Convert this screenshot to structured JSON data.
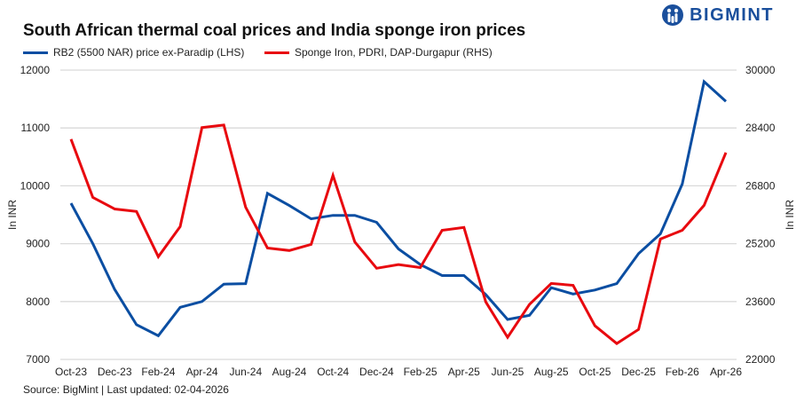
{
  "chart_data": {
    "type": "line",
    "title": "South African thermal coal prices and India sponge iron prices",
    "x": [
      "Oct-23",
      "Nov-23",
      "Dec-23",
      "Jan-24",
      "Feb-24",
      "Mar-24",
      "Apr-24",
      "May-24",
      "Jun-24",
      "Jul-24",
      "Aug-24",
      "Sep-24",
      "Oct-24",
      "Nov-24",
      "Dec-24",
      "Jan-25",
      "Feb-25",
      "Mar-25",
      "Apr-25",
      "May-25",
      "Jun-25",
      "Jul-25",
      "Aug-25",
      "Sep-25",
      "Oct-25",
      "Nov-25",
      "Dec-25",
      "Jan-26",
      "Feb-26",
      "Mar-26",
      "Apr-26"
    ],
    "xtick_labels": [
      "Oct-23",
      "Dec-23",
      "Feb-24",
      "Apr-24",
      "Jun-24",
      "Aug-24",
      "Oct-24",
      "Dec-24",
      "Feb-25",
      "Apr-25",
      "Jun-25",
      "Aug-25",
      "Oct-25",
      "Dec-25",
      "Feb-26",
      "Apr-26"
    ],
    "ylabel_left": "In INR",
    "ylabel_right": "In INR",
    "ylim_left": [
      7000,
      12000
    ],
    "ylim_right": [
      22000,
      30000
    ],
    "yticks_left": [
      "7000",
      "8000",
      "9000",
      "10000",
      "11000",
      "12000"
    ],
    "yticks_right": [
      "22000",
      "23600",
      "25200",
      "26800",
      "28400",
      "30000"
    ],
    "grid": true,
    "legend_placement": "top-left",
    "series": [
      {
        "name": "RB2 (5500 NAR) price ex-Paradip (LHS)",
        "axis": "left",
        "color": "#0b4ea2",
        "values": [
          9700,
          9000,
          8210,
          7600,
          7410,
          7900,
          8000,
          8300,
          8310,
          9870,
          9660,
          9430,
          9490,
          9490,
          9370,
          8910,
          8640,
          8450,
          8450,
          8120,
          7690,
          7760,
          8240,
          8130,
          8200,
          8310,
          8830,
          9170,
          10030,
          11800,
          11460
        ]
      },
      {
        "name": "Sponge Iron, PDRI, DAP-Durgapur (RHS)",
        "axis": "right",
        "color": "#e8090f",
        "values": [
          28090,
          26480,
          26160,
          26090,
          24840,
          25670,
          28410,
          28480,
          26210,
          25080,
          25010,
          25180,
          27090,
          25250,
          24520,
          24620,
          24540,
          25570,
          25650,
          23590,
          22610,
          23520,
          24100,
          24050,
          22930,
          22440,
          22830,
          25330,
          25570,
          26260,
          27720
        ]
      }
    ]
  },
  "source": "Source: BigMint | Last updated: 02-04-2026",
  "logo": "BIGMINT"
}
